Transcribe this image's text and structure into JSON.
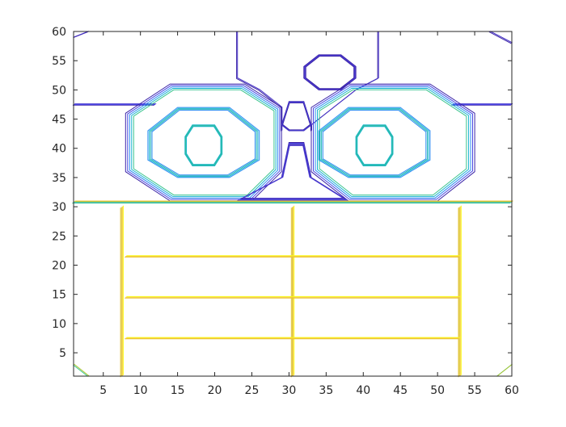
{
  "chart_data": {
    "type": "contour",
    "title": "",
    "xlabel": "",
    "ylabel": "",
    "xlim": [
      1,
      60
    ],
    "ylim": [
      1,
      60
    ],
    "xticks": [
      5,
      10,
      15,
      20,
      25,
      30,
      35,
      40,
      45,
      50,
      55,
      60
    ],
    "yticks": [
      5,
      10,
      15,
      20,
      25,
      30,
      35,
      40,
      45,
      50,
      55,
      60
    ],
    "box": true,
    "grid": false,
    "colormap_colors": [
      "#3d26a8",
      "#4a49e4",
      "#2b8cf2",
      "#16b4cf",
      "#3cc58f",
      "#a9c52e",
      "#f6c63c",
      "#f9fb14"
    ],
    "contour_groups": [
      {
        "name": "upper-octagon",
        "colors": [
          "#3d26a8",
          "#4431c4",
          "#4a3bd3"
        ],
        "levels": 4,
        "points": [
          [
            34,
            56
          ],
          [
            37,
            56
          ],
          [
            39,
            54
          ],
          [
            39,
            52
          ],
          [
            37,
            50
          ],
          [
            34,
            50
          ],
          [
            32,
            52
          ],
          [
            32,
            54
          ]
        ]
      },
      {
        "name": "top-vertical-strands",
        "colors": [
          "#3d26a8",
          "#4431c4"
        ],
        "polylines": [
          [
            [
              23,
              60
            ],
            [
              23,
              52
            ],
            [
              26,
              50
            ],
            [
              29,
              47
            ],
            [
              29,
              43
            ]
          ],
          [
            [
              42,
              60
            ],
            [
              42,
              52
            ],
            [
              39,
              50
            ],
            [
              33,
              44
            ],
            [
              33,
              43
            ]
          ],
          [
            [
              1,
              59
            ],
            [
              3,
              60
            ]
          ],
          [
            [
              57,
              60
            ],
            [
              60,
              58
            ]
          ]
        ]
      },
      {
        "name": "horizontal-45-line",
        "colors": [
          "#3d26a8",
          "#4a49e4",
          "#4a3bd3"
        ],
        "polylines": [
          [
            [
              1,
              47.5
            ],
            [
              12,
              47.5
            ]
          ],
          [
            [
              52,
              47.5
            ],
            [
              60,
              47.5
            ]
          ]
        ]
      },
      {
        "name": "left-outer-octagon",
        "colors": [
          "#3d26a8",
          "#4a49e4",
          "#2b8cf2",
          "#16b4cf",
          "#3cc58f"
        ],
        "levels": 5,
        "points": [
          [
            14,
            51
          ],
          [
            24,
            51
          ],
          [
            29,
            47
          ],
          [
            29,
            36
          ],
          [
            25,
            31
          ],
          [
            14,
            31
          ],
          [
            8,
            36
          ],
          [
            8,
            46
          ]
        ]
      },
      {
        "name": "right-outer-octagon",
        "colors": [
          "#3d26a8",
          "#4a49e4",
          "#2b8cf2",
          "#16b4cf",
          "#3cc58f"
        ],
        "levels": 5,
        "points": [
          [
            38,
            51
          ],
          [
            49,
            51
          ],
          [
            55,
            46
          ],
          [
            55,
            36
          ],
          [
            50,
            31
          ],
          [
            38,
            31
          ],
          [
            33,
            36
          ],
          [
            33,
            47
          ]
        ]
      },
      {
        "name": "left-middle-octagon",
        "colors": [
          "#2b8cf2",
          "#16b4cf",
          "#23b7b5"
        ],
        "levels": 4,
        "points": [
          [
            15,
            47
          ],
          [
            22,
            47
          ],
          [
            26,
            43
          ],
          [
            26,
            38
          ],
          [
            22,
            35
          ],
          [
            15,
            35
          ],
          [
            11,
            38
          ],
          [
            11,
            43
          ]
        ]
      },
      {
        "name": "right-middle-octagon",
        "colors": [
          "#2b8cf2",
          "#16b4cf",
          "#23b7b5"
        ],
        "levels": 4,
        "points": [
          [
            38,
            47
          ],
          [
            45,
            47
          ],
          [
            49,
            43
          ],
          [
            49,
            38
          ],
          [
            45,
            35
          ],
          [
            38,
            35
          ],
          [
            34,
            38
          ],
          [
            34,
            43
          ]
        ]
      },
      {
        "name": "left-inner-octagon",
        "colors": [
          "#16b4cf",
          "#23b7b5",
          "#3cc58f"
        ],
        "levels": 4,
        "points": [
          [
            17,
            44
          ],
          [
            20,
            44
          ],
          [
            21,
            42
          ],
          [
            21,
            39
          ],
          [
            20,
            37
          ],
          [
            17,
            37
          ],
          [
            16,
            39
          ],
          [
            16,
            42
          ]
        ]
      },
      {
        "name": "right-inner-octagon",
        "colors": [
          "#16b4cf",
          "#23b7b5",
          "#3cc58f"
        ],
        "levels": 4,
        "points": [
          [
            40,
            44
          ],
          [
            43,
            44
          ],
          [
            44,
            42
          ],
          [
            44,
            39
          ],
          [
            43,
            37
          ],
          [
            40,
            37
          ],
          [
            39,
            39
          ],
          [
            39,
            42
          ]
        ]
      },
      {
        "name": "center-diamond",
        "colors": [
          "#3d26a8",
          "#4a3bd3",
          "#4a49e4"
        ],
        "levels": 4,
        "points": [
          [
            30,
            48
          ],
          [
            32,
            48
          ],
          [
            33,
            44
          ],
          [
            32,
            43
          ],
          [
            30,
            43
          ],
          [
            29,
            44
          ]
        ]
      },
      {
        "name": "center-triangle",
        "colors": [
          "#3d26a8",
          "#4a3bd3",
          "#4a49e4"
        ],
        "levels": 5,
        "points": [
          [
            30,
            41
          ],
          [
            32,
            41
          ],
          [
            33,
            35
          ],
          [
            38,
            31
          ],
          [
            23,
            31
          ],
          [
            29,
            35
          ]
        ]
      },
      {
        "name": "horizontal-30-line",
        "colors": [
          "#3cc58f",
          "#16b4cf",
          "#a9c52e",
          "#f6c63c"
        ],
        "polylines": [
          [
            [
              1,
              30.8
            ],
            [
              60,
              30.8
            ]
          ]
        ]
      },
      {
        "name": "lower-vertical-strands",
        "colors": [
          "#e6c337",
          "#d5c531",
          "#f6c63c",
          "#f9fb14"
        ],
        "polylines": [
          [
            [
              7.5,
              30
            ],
            [
              7.5,
              1
            ]
          ],
          [
            [
              30.5,
              30
            ],
            [
              30.5,
              1
            ]
          ],
          [
            [
              53,
              30
            ],
            [
              53,
              1
            ]
          ]
        ]
      },
      {
        "name": "lower-horizontal-lines",
        "colors": [
          "#e6c337",
          "#f6c63c",
          "#f9fb14"
        ],
        "polylines": [
          [
            [
              8,
              21.5
            ],
            [
              53,
              21.5
            ]
          ],
          [
            [
              8,
              14.5
            ],
            [
              53,
              14.5
            ]
          ],
          [
            [
              8,
              7.5
            ],
            [
              53,
              7.5
            ]
          ]
        ]
      },
      {
        "name": "corner-ticks",
        "colors": [
          "#3cc58f",
          "#a9c52e"
        ],
        "polylines": [
          [
            [
              1,
              3
            ],
            [
              3,
              1
            ]
          ],
          [
            [
              58,
              1
            ],
            [
              60,
              3
            ]
          ]
        ]
      }
    ]
  }
}
